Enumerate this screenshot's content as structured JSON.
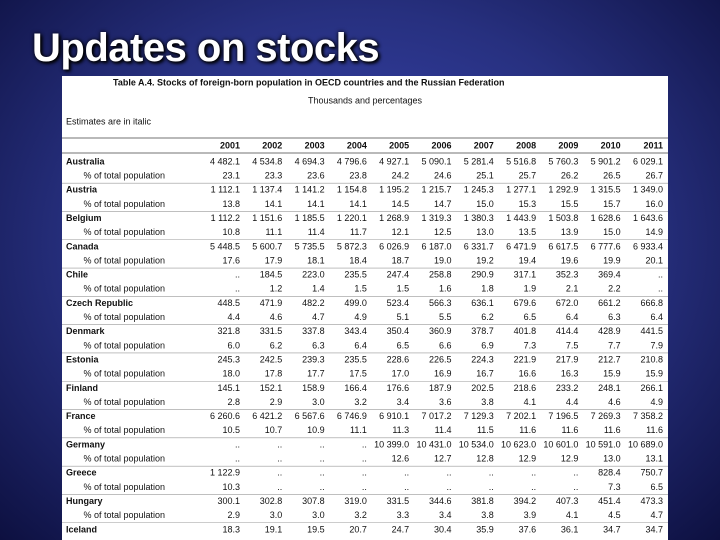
{
  "slide": {
    "title": "Updates on stocks"
  },
  "table": {
    "title": "Table A.4. Stocks of foreign-born population in OECD countries and the Russian Federation",
    "subtitle": "Thousands and percentages",
    "note": "Estimates are in italic",
    "columns": [
      "2001",
      "2002",
      "2003",
      "2004",
      "2005",
      "2006",
      "2007",
      "2008",
      "2009",
      "2010",
      "2011"
    ],
    "rows": [
      {
        "label": "Australia",
        "cells": [
          "4 482.1",
          "4 534.8",
          "4 694.3",
          "4 796.6",
          "4 927.1",
          "5 090.1",
          "5 281.4",
          "5 516.8",
          "5 760.3",
          "5 901.2",
          "6 029.1"
        ]
      },
      {
        "label": "% of total population",
        "cells": [
          "23.1",
          "23.3",
          "23.6",
          "23.8",
          "24.2",
          "24.6",
          "25.1",
          "25.7",
          "26.2",
          "26.5",
          "26.7"
        ]
      },
      {
        "label": "Austria",
        "cells": [
          "1 112.1",
          "1 137.4",
          "1 141.2",
          "1 154.8",
          "1 195.2",
          "1 215.7",
          "1 245.3",
          "1 277.1",
          "1 292.9",
          "1 315.5",
          "1 349.0"
        ]
      },
      {
        "label": "% of total population",
        "cells": [
          "13.8",
          "14.1",
          "14.1",
          "14.1",
          "14.5",
          "14.7",
          "15.0",
          "15.3",
          "15.5",
          "15.7",
          "16.0"
        ]
      },
      {
        "label": "Belgium",
        "cells": [
          "1 112.2",
          "1 151.6",
          "1 185.5",
          "1 220.1",
          "1 268.9",
          "1 319.3",
          "1 380.3",
          "1 443.9",
          "1 503.8",
          "1 628.6",
          "1 643.6"
        ]
      },
      {
        "label": "% of total population",
        "cells": [
          "10.8",
          "11.1",
          "11.4",
          "11.7",
          "12.1",
          "12.5",
          "13.0",
          "13.5",
          "13.9",
          "15.0",
          "14.9"
        ]
      },
      {
        "label": "Canada",
        "cells": [
          "5 448.5",
          "5 600.7",
          "5 735.5",
          "5 872.3",
          "6 026.9",
          "6 187.0",
          "6 331.7",
          "6 471.9",
          "6 617.5",
          "6 777.6",
          "6 933.4"
        ]
      },
      {
        "label": "% of total population",
        "cells": [
          "17.6",
          "17.9",
          "18.1",
          "18.4",
          "18.7",
          "19.0",
          "19.2",
          "19.4",
          "19.6",
          "19.9",
          "20.1"
        ]
      },
      {
        "label": "Chile",
        "cells": [
          "..",
          "184.5",
          "223.0",
          "235.5",
          "247.4",
          "258.8",
          "290.9",
          "317.1",
          "352.3",
          "369.4",
          ".."
        ]
      },
      {
        "label": "% of total population",
        "cells": [
          "..",
          "1.2",
          "1.4",
          "1.5",
          "1.5",
          "1.6",
          "1.8",
          "1.9",
          "2.1",
          "2.2",
          ".."
        ]
      },
      {
        "label": "Czech Republic",
        "cells": [
          "448.5",
          "471.9",
          "482.2",
          "499.0",
          "523.4",
          "566.3",
          "636.1",
          "679.6",
          "672.0",
          "661.2",
          "666.8"
        ]
      },
      {
        "label": "% of total population",
        "cells": [
          "4.4",
          "4.6",
          "4.7",
          "4.9",
          "5.1",
          "5.5",
          "6.2",
          "6.5",
          "6.4",
          "6.3",
          "6.4"
        ]
      },
      {
        "label": "Denmark",
        "cells": [
          "321.8",
          "331.5",
          "337.8",
          "343.4",
          "350.4",
          "360.9",
          "378.7",
          "401.8",
          "414.4",
          "428.9",
          "441.5"
        ]
      },
      {
        "label": "% of total population",
        "cells": [
          "6.0",
          "6.2",
          "6.3",
          "6.4",
          "6.5",
          "6.6",
          "6.9",
          "7.3",
          "7.5",
          "7.7",
          "7.9"
        ]
      },
      {
        "label": "Estonia",
        "cells": [
          "245.3",
          "242.5",
          "239.3",
          "235.5",
          "228.6",
          "226.5",
          "224.3",
          "221.9",
          "217.9",
          "212.7",
          "210.8"
        ]
      },
      {
        "label": "% of total population",
        "cells": [
          "18.0",
          "17.8",
          "17.7",
          "17.5",
          "17.0",
          "16.9",
          "16.7",
          "16.6",
          "16.3",
          "15.9",
          "15.9"
        ]
      },
      {
        "label": "Finland",
        "cells": [
          "145.1",
          "152.1",
          "158.9",
          "166.4",
          "176.6",
          "187.9",
          "202.5",
          "218.6",
          "233.2",
          "248.1",
          "266.1"
        ]
      },
      {
        "label": "% of total population",
        "cells": [
          "2.8",
          "2.9",
          "3.0",
          "3.2",
          "3.4",
          "3.6",
          "3.8",
          "4.1",
          "4.4",
          "4.6",
          "4.9"
        ]
      },
      {
        "label": "France",
        "cells": [
          "6 260.6",
          "6 421.2",
          "6 567.6",
          "6 746.9",
          "6 910.1",
          "7 017.2",
          "7 129.3",
          "7 202.1",
          "7 196.5",
          "7 269.3",
          "7 358.2"
        ]
      },
      {
        "label": "% of total population",
        "cells": [
          "10.5",
          "10.7",
          "10.9",
          "11.1",
          "11.3",
          "11.4",
          "11.5",
          "11.6",
          "11.6",
          "11.6",
          "11.6"
        ]
      },
      {
        "label": "Germany",
        "cells": [
          "..",
          "..",
          "..",
          "..",
          "10 399.0",
          "10 431.0",
          "10 534.0",
          "10 623.0",
          "10 601.0",
          "10 591.0",
          "10 689.0"
        ]
      },
      {
        "label": "% of total population",
        "cells": [
          "..",
          "..",
          "..",
          "..",
          "12.6",
          "12.7",
          "12.8",
          "12.9",
          "12.9",
          "13.0",
          "13.1"
        ]
      },
      {
        "label": "Greece",
        "cells": [
          "1 122.9",
          "..",
          "..",
          "..",
          "..",
          "..",
          "..",
          "..",
          "..",
          "828.4",
          "750.7"
        ]
      },
      {
        "label": "% of total population",
        "cells": [
          "10.3",
          "..",
          "..",
          "..",
          "..",
          "..",
          "..",
          "..",
          "..",
          "7.3",
          "6.5"
        ]
      },
      {
        "label": "Hungary",
        "cells": [
          "300.1",
          "302.8",
          "307.8",
          "319.0",
          "331.5",
          "344.6",
          "381.8",
          "394.2",
          "407.3",
          "451.4",
          "473.3"
        ]
      },
      {
        "label": "% of total population",
        "cells": [
          "2.9",
          "3.0",
          "3.0",
          "3.2",
          "3.3",
          "3.4",
          "3.8",
          "3.9",
          "4.1",
          "4.5",
          "4.7"
        ]
      },
      {
        "label": "Iceland",
        "cells": [
          "18.3",
          "19.1",
          "19.5",
          "20.7",
          "24.7",
          "30.4",
          "35.9",
          "37.6",
          "36.1",
          "34.7",
          "34.7"
        ]
      }
    ]
  }
}
